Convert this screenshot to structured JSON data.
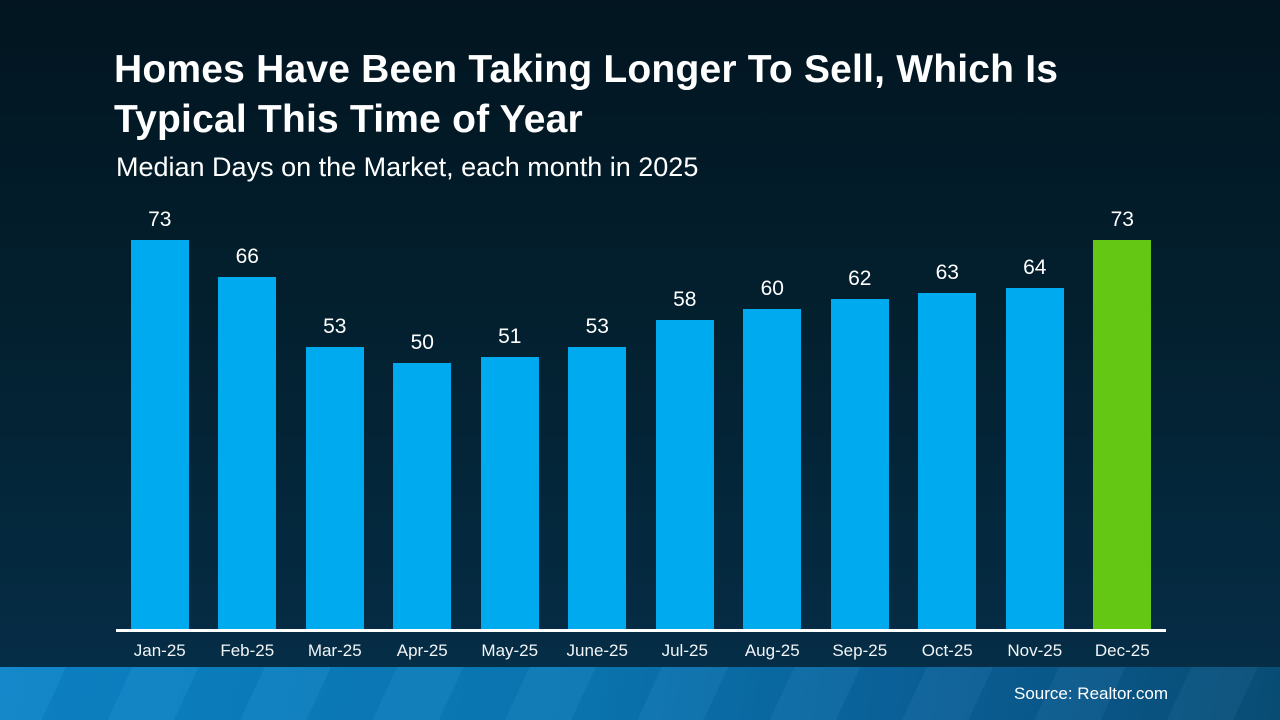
{
  "slide": {
    "title_lines": [
      "Homes Have Been Taking Longer To Sell, Which Is",
      "Typical This Time of Year"
    ],
    "subtitle": "Median Days on the Market, each month in 2025"
  },
  "chart_data": {
    "type": "bar",
    "title": "Homes Have Been Taking Longer To Sell, Which Is Typical This Time of Year",
    "subtitle": "Median Days on the Market, each month in 2025",
    "categories": [
      "Jan-25",
      "Feb-25",
      "Mar-25",
      "Apr-25",
      "May-25",
      "June-25",
      "Jul-25",
      "Aug-25",
      "Sep-25",
      "Oct-25",
      "Nov-25",
      "Dec-25"
    ],
    "values": [
      73,
      66,
      53,
      50,
      51,
      53,
      58,
      60,
      62,
      63,
      64,
      73
    ],
    "highlight_index": 11,
    "value_labels_shown": true,
    "grid": false,
    "legend": null,
    "ylim": [
      0,
      80
    ],
    "xlabel": "",
    "ylabel": "Median Days on the Market",
    "colors": {
      "bar_default": "#00aaee",
      "bar_highlight": "#63c713",
      "axis_line": "#ffffff",
      "label_text": "#ffffff",
      "background_top": "#021520",
      "background_bottom": "#063049",
      "footer_left": "#0c84c8",
      "footer_right": "#084e77"
    }
  },
  "footer": {
    "source_label": "Source: Realtor.com"
  }
}
